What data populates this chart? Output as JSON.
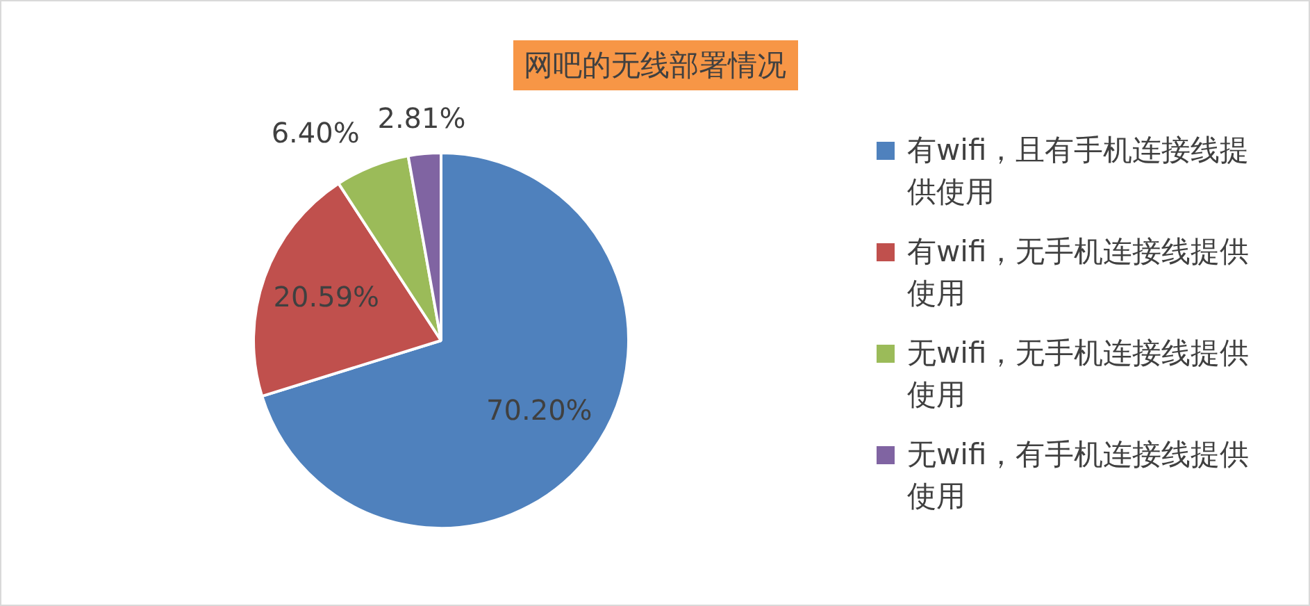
{
  "chart_data": {
    "type": "pie",
    "title": "网吧的无线部署情况",
    "categories": [
      "有wifi，且有手机连接线提供使用",
      "有wifi，无手机连接线提供使用",
      "无wifi，无手机连接线提供使用",
      "无wifi，有手机连接线提供使用"
    ],
    "values": [
      70.2,
      20.59,
      6.4,
      2.81
    ],
    "colors": [
      "#4f81bd",
      "#c0504d",
      "#9bbb59",
      "#8064a2"
    ],
    "value_labels": [
      "70.20%",
      "20.59%",
      "6.40%",
      "2.81%"
    ],
    "legend": "right"
  }
}
